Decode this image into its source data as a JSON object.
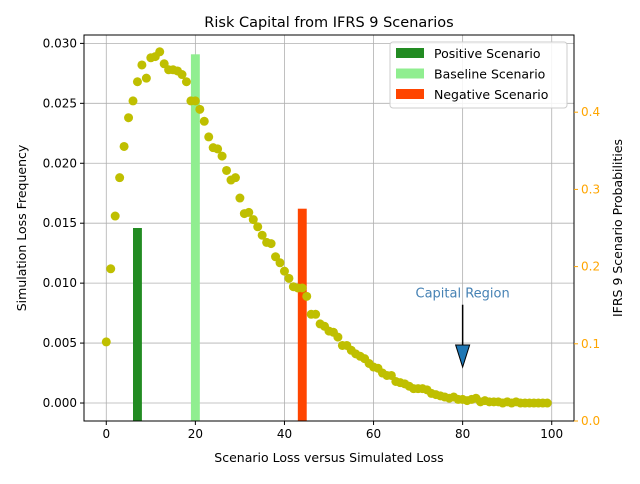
{
  "chart_data": {
    "type": "scatter+bar",
    "title": "Risk Capital from IFRS 9 Scenarios",
    "xlabel": "Scenario Loss versus Simulated Loss",
    "ylabel": "Simulation Loss Frequency",
    "y2label": "IFRS 9 Scenario Probabilities",
    "xlim": [
      -5,
      105
    ],
    "ylim": [
      -0.0015,
      0.0307
    ],
    "y2lim": [
      0.0,
      0.5
    ],
    "xticks": [
      0,
      20,
      40,
      60,
      80,
      100
    ],
    "yticks": [
      "0.000",
      "0.005",
      "0.010",
      "0.015",
      "0.020",
      "0.025",
      "0.030"
    ],
    "y2ticks": [
      "0.0",
      "0.1",
      "0.2",
      "0.3",
      "0.4"
    ],
    "grid": true,
    "legend_position": "top-right",
    "scatter": {
      "color": "#bfbf00",
      "x_start": 0,
      "values": [
        0.0051,
        0.0112,
        0.0156,
        0.0188,
        0.0214,
        0.0238,
        0.0252,
        0.0268,
        0.0282,
        0.0271,
        0.0288,
        0.0289,
        0.0293,
        0.0283,
        0.0278,
        0.0278,
        0.0277,
        0.0274,
        0.0268,
        0.0252,
        0.0252,
        0.0245,
        0.0235,
        0.0222,
        0.0213,
        0.0212,
        0.0206,
        0.0194,
        0.0186,
        0.0188,
        0.0171,
        0.0158,
        0.0159,
        0.0153,
        0.0147,
        0.014,
        0.0134,
        0.0133,
        0.0122,
        0.0117,
        0.011,
        0.0104,
        0.0097,
        0.0096,
        0.0096,
        0.0089,
        0.0074,
        0.0074,
        0.0066,
        0.0064,
        0.006,
        0.0059,
        0.0055,
        0.0048,
        0.0048,
        0.0044,
        0.0041,
        0.0039,
        0.0037,
        0.0033,
        0.003,
        0.0029,
        0.0025,
        0.0023,
        0.0023,
        0.0018,
        0.0017,
        0.0016,
        0.0014,
        0.0012,
        0.0012,
        0.0012,
        0.0011,
        0.0008,
        0.0007,
        0.0006,
        0.0005,
        0.0004,
        0.0005,
        0.0003,
        0.0003,
        0.0002,
        0.0003,
        0.0004,
        0.0001,
        0.0002,
        0.0001,
        0.0001,
        0.0001,
        0.0,
        0.0001,
        0.0,
        0.0001,
        0.0,
        0.0,
        0.0,
        0.0,
        0.0,
        0.0,
        0.0
      ]
    },
    "bars": [
      {
        "name": "Positive Scenario",
        "x": 7,
        "probability": 0.25,
        "color": "#228b22"
      },
      {
        "name": "Baseline Scenario",
        "x": 20,
        "probability": 0.475,
        "color": "#90ee90"
      },
      {
        "name": "Negative Scenario",
        "x": 44,
        "probability": 0.275,
        "color": "#ff4500"
      }
    ],
    "annotation": {
      "text": "Capital Region",
      "text_x": 80,
      "text_y": 0.0088,
      "arrow_from": [
        80,
        0.0082
      ],
      "arrow_to": [
        80,
        0.003
      ],
      "color": "#4682b4",
      "arrow_color": "#1f77b4"
    },
    "axis_colors": {
      "right": "#ffa500"
    }
  }
}
